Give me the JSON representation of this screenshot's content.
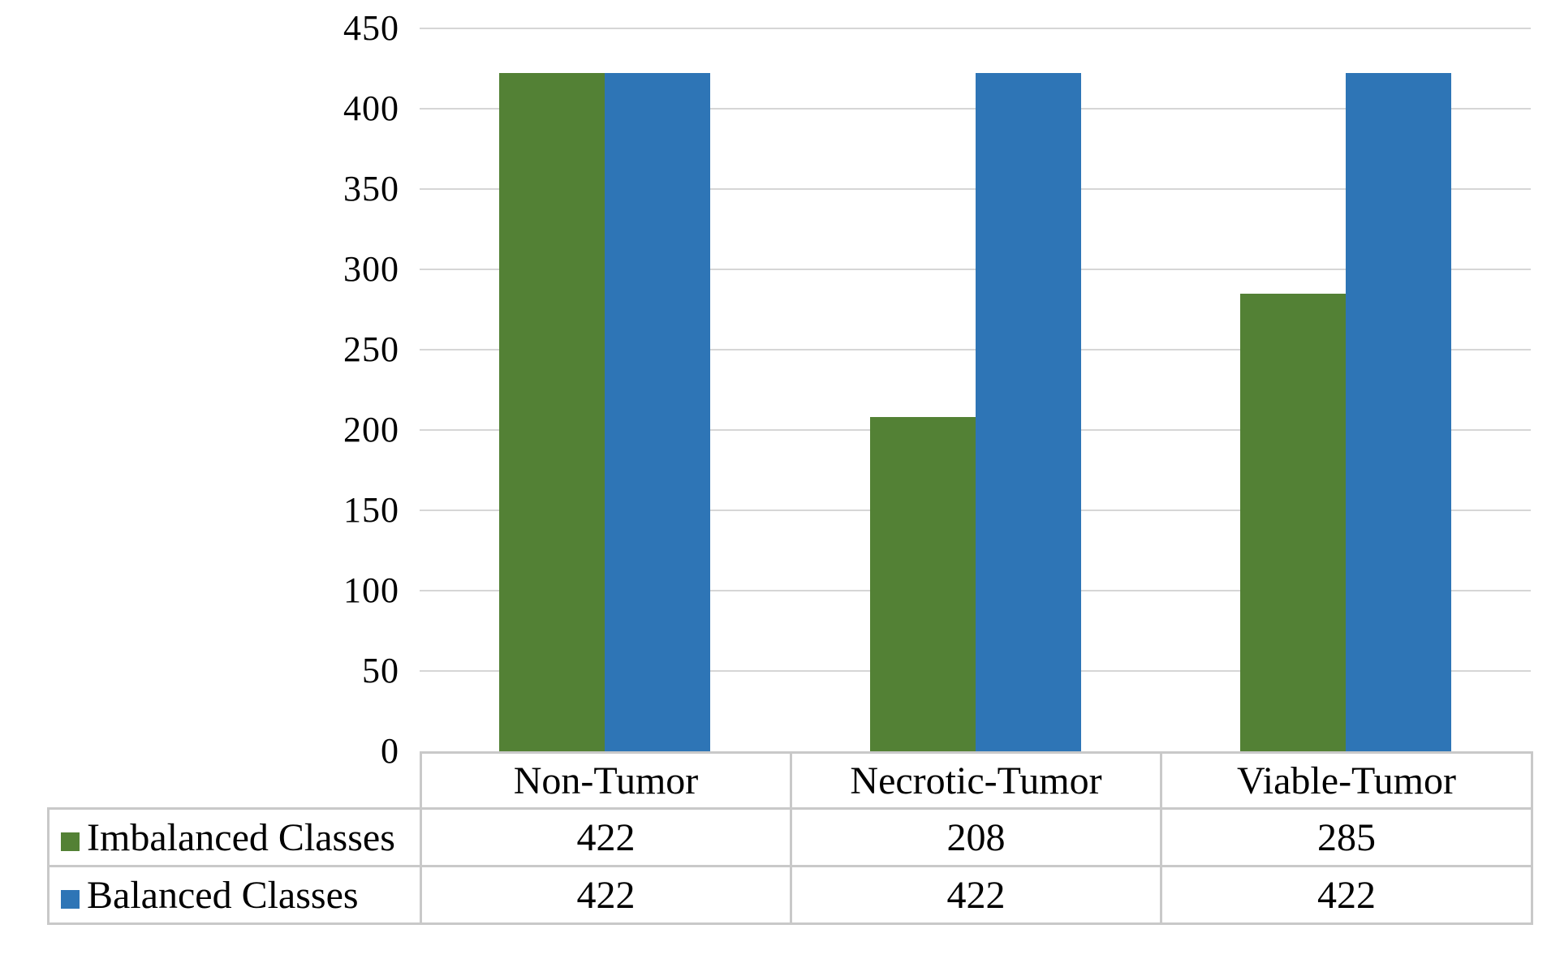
{
  "figure": {
    "background": "#ffffff",
    "text_color": "#000000"
  },
  "chart_data": {
    "type": "bar",
    "title": "",
    "xlabel": "",
    "ylabel": "",
    "categories": [
      "Non-Tumor",
      "Necrotic-Tumor",
      "Viable-Tumor"
    ],
    "series": [
      {
        "name": "Imbalanced Classes",
        "color": "#538135",
        "values": [
          422,
          208,
          285
        ]
      },
      {
        "name": "Balanced Classes",
        "color": "#2E75B6",
        "values": [
          422,
          422,
          422
        ]
      }
    ],
    "ylim": [
      0,
      450
    ],
    "yticks": [
      0,
      50,
      100,
      150,
      200,
      250,
      300,
      350,
      400,
      450
    ],
    "grid": true,
    "gridline_color": "#d6d6d6",
    "table_border_color": "#c9c9c9",
    "legend_position": "table-left"
  }
}
